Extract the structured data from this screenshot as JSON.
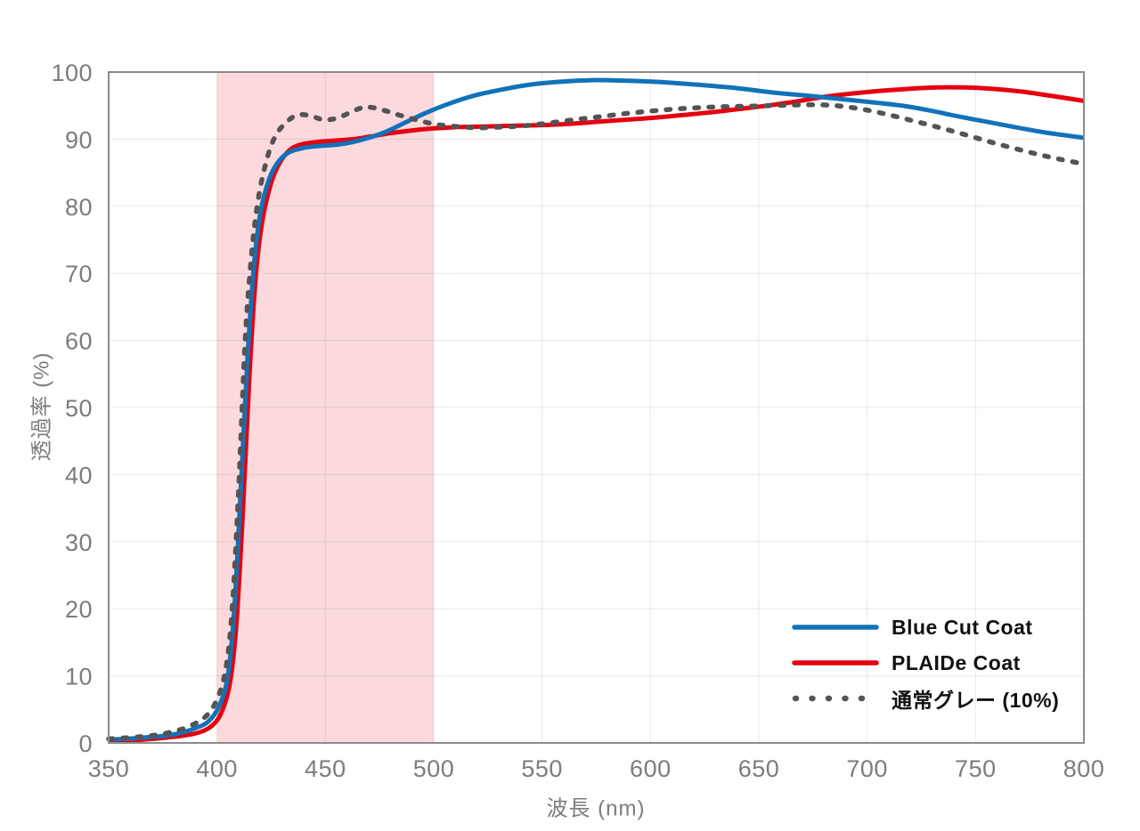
{
  "chart_data": {
    "type": "line",
    "title": "",
    "xlabel": "波長 (nm)",
    "ylabel": "透過率 (%)",
    "xlim": [
      350,
      800
    ],
    "ylim": [
      0,
      100
    ],
    "x_ticks": [
      350,
      400,
      450,
      500,
      550,
      600,
      650,
      700,
      750,
      800
    ],
    "y_ticks": [
      0,
      10,
      20,
      30,
      40,
      50,
      60,
      70,
      80,
      90,
      100
    ],
    "grid": true,
    "legend_position": "lower-right",
    "highlight_band": {
      "x_start": 400,
      "x_end": 500,
      "color": "#fbd9dd"
    },
    "series": [
      {
        "name": "Blue Cut Coat",
        "color": "#1172b9",
        "style": "solid",
        "points": [
          [
            350,
            0.5
          ],
          [
            358,
            0.6
          ],
          [
            366,
            0.8
          ],
          [
            374,
            1.0
          ],
          [
            382,
            1.4
          ],
          [
            390,
            2.2
          ],
          [
            396,
            3.2
          ],
          [
            401,
            5.5
          ],
          [
            405,
            10
          ],
          [
            408,
            20
          ],
          [
            411,
            38
          ],
          [
            414,
            57
          ],
          [
            417,
            71
          ],
          [
            420,
            79
          ],
          [
            424,
            84
          ],
          [
            428,
            86.5
          ],
          [
            433,
            88
          ],
          [
            440,
            88.7
          ],
          [
            448,
            89
          ],
          [
            456,
            89.2
          ],
          [
            463,
            89.6
          ],
          [
            470,
            90.2
          ],
          [
            478,
            91.1
          ],
          [
            487,
            92.5
          ],
          [
            497,
            94
          ],
          [
            508,
            95.4
          ],
          [
            520,
            96.6
          ],
          [
            533,
            97.5
          ],
          [
            546,
            98.2
          ],
          [
            560,
            98.6
          ],
          [
            575,
            98.8
          ],
          [
            590,
            98.7
          ],
          [
            605,
            98.5
          ],
          [
            622,
            98.1
          ],
          [
            640,
            97.6
          ],
          [
            658,
            96.9
          ],
          [
            675,
            96.4
          ],
          [
            690,
            95.9
          ],
          [
            705,
            95.4
          ],
          [
            718,
            94.9
          ],
          [
            730,
            94.2
          ],
          [
            742,
            93.4
          ],
          [
            755,
            92.6
          ],
          [
            768,
            91.8
          ],
          [
            782,
            91.0
          ],
          [
            800,
            90.2
          ]
        ]
      },
      {
        "name": "PLAIDe Coat",
        "color": "#e6000f",
        "style": "solid",
        "points": [
          [
            350,
            0.3
          ],
          [
            360,
            0.4
          ],
          [
            370,
            0.6
          ],
          [
            380,
            0.9
          ],
          [
            390,
            1.4
          ],
          [
            397,
            2.4
          ],
          [
            402,
            4.5
          ],
          [
            406,
            9
          ],
          [
            409,
            18
          ],
          [
            412,
            35
          ],
          [
            415,
            55
          ],
          [
            418,
            70
          ],
          [
            421,
            78
          ],
          [
            425,
            83.5
          ],
          [
            429,
            86.5
          ],
          [
            434,
            88.5
          ],
          [
            440,
            89.3
          ],
          [
            447,
            89.6
          ],
          [
            455,
            89.8
          ],
          [
            463,
            90.0
          ],
          [
            471,
            90.4
          ],
          [
            480,
            90.9
          ],
          [
            490,
            91.3
          ],
          [
            500,
            91.6
          ],
          [
            512,
            91.8
          ],
          [
            525,
            91.9
          ],
          [
            538,
            92.0
          ],
          [
            550,
            92.1
          ],
          [
            563,
            92.3
          ],
          [
            576,
            92.6
          ],
          [
            589,
            92.9
          ],
          [
            602,
            93.2
          ],
          [
            615,
            93.6
          ],
          [
            628,
            94.0
          ],
          [
            641,
            94.5
          ],
          [
            654,
            95.0
          ],
          [
            667,
            95.6
          ],
          [
            680,
            96.3
          ],
          [
            693,
            96.8
          ],
          [
            706,
            97.2
          ],
          [
            719,
            97.5
          ],
          [
            732,
            97.7
          ],
          [
            745,
            97.7
          ],
          [
            758,
            97.5
          ],
          [
            771,
            97.1
          ],
          [
            784,
            96.5
          ],
          [
            800,
            95.7
          ]
        ]
      },
      {
        "name": "通常グレー (10%)",
        "color": "#545454",
        "style": "dashed",
        "points": [
          [
            350,
            0.6
          ],
          [
            360,
            0.8
          ],
          [
            370,
            1.1
          ],
          [
            380,
            1.7
          ],
          [
            388,
            2.6
          ],
          [
            395,
            4
          ],
          [
            400,
            6.5
          ],
          [
            404,
            11
          ],
          [
            407,
            20
          ],
          [
            410,
            38
          ],
          [
            413,
            60
          ],
          [
            416,
            73
          ],
          [
            419,
            81
          ],
          [
            423,
            87
          ],
          [
            427,
            90.5
          ],
          [
            432,
            92.5
          ],
          [
            437,
            93.6
          ],
          [
            443,
            93.5
          ],
          [
            449,
            92.9
          ],
          [
            455,
            93.1
          ],
          [
            461,
            93.9
          ],
          [
            467,
            94.7
          ],
          [
            472,
            94.7
          ],
          [
            478,
            94.2
          ],
          [
            485,
            93.5
          ],
          [
            493,
            92.8
          ],
          [
            501,
            92.2
          ],
          [
            510,
            91.9
          ],
          [
            520,
            91.7
          ],
          [
            531,
            91.8
          ],
          [
            542,
            92.0
          ],
          [
            553,
            92.4
          ],
          [
            565,
            92.9
          ],
          [
            578,
            93.4
          ],
          [
            591,
            93.9
          ],
          [
            604,
            94.3
          ],
          [
            617,
            94.6
          ],
          [
            630,
            94.8
          ],
          [
            643,
            94.9
          ],
          [
            656,
            95.0
          ],
          [
            668,
            95.1
          ],
          [
            680,
            95.1
          ],
          [
            691,
            94.8
          ],
          [
            702,
            94.2
          ],
          [
            713,
            93.4
          ],
          [
            724,
            92.5
          ],
          [
            736,
            91.5
          ],
          [
            748,
            90.4
          ],
          [
            760,
            89.3
          ],
          [
            773,
            88.2
          ],
          [
            786,
            87.2
          ],
          [
            800,
            86.3
          ]
        ]
      }
    ]
  }
}
